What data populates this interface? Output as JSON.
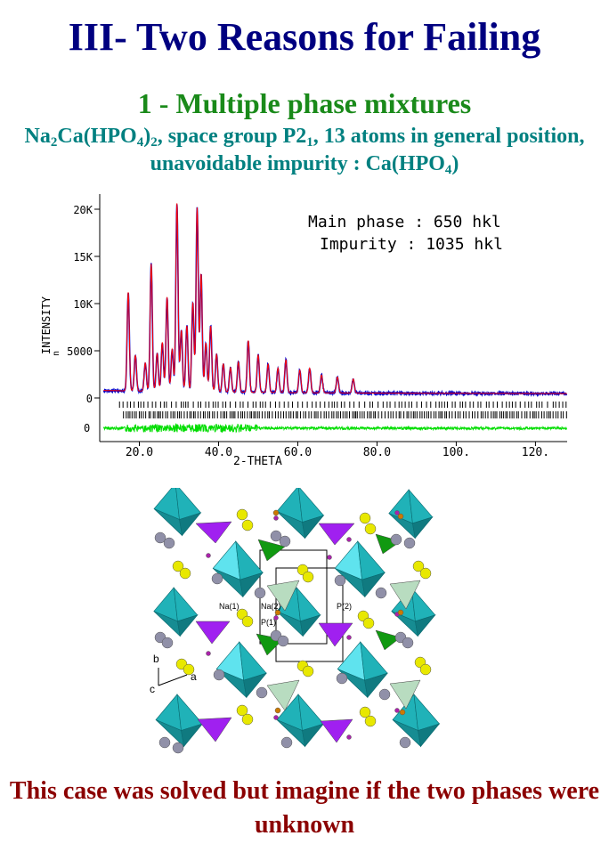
{
  "title": "III- Two Reasons for Failing",
  "subtitle": "1 - Multiple phase mixtures",
  "description": {
    "formula_a": "Na",
    "formula_a_sub": "2",
    "formula_b": "Ca(HPO",
    "formula_b_sub": "4",
    "formula_c": ")",
    "formula_c_sub": "2",
    "formula_d": ", space group P2",
    "formula_d_sub": "1",
    "formula_e": ", 13 atoms in general position, unavoidable impurity : Ca(HPO",
    "formula_e_sub": "4",
    "formula_f": ")"
  },
  "chart_data": {
    "type": "line",
    "xlabel": "2-THETA",
    "ylabel": "INTENSITY",
    "ylabel_minor": "n",
    "xlim": [
      10,
      128
    ],
    "ylim": [
      -3500,
      21500
    ],
    "x_ticks": [
      "20.0",
      "40.0",
      "60.0",
      "80.0",
      "100.",
      "120."
    ],
    "x_tick_values": [
      20,
      40,
      60,
      80,
      100,
      120
    ],
    "y_ticks": [
      "20K",
      "15K",
      "10K",
      "5000",
      "0"
    ],
    "y_tick_values": [
      20000,
      15000,
      10000,
      5000,
      0
    ],
    "difference_zero_label": "0",
    "annotations": [
      "Main phase : 650 hkl",
      "Impurity : 1035 hkl"
    ],
    "background_level": 800,
    "peaks": [
      {
        "x": 17.2,
        "y": 10500
      },
      {
        "x": 19.0,
        "y": 3800
      },
      {
        "x": 21.5,
        "y": 3000
      },
      {
        "x": 23.0,
        "y": 13500
      },
      {
        "x": 24.5,
        "y": 4000
      },
      {
        "x": 25.8,
        "y": 5200
      },
      {
        "x": 27.0,
        "y": 10000
      },
      {
        "x": 28.3,
        "y": 4500
      },
      {
        "x": 29.5,
        "y": 20000
      },
      {
        "x": 30.6,
        "y": 6500
      },
      {
        "x": 32.0,
        "y": 7000
      },
      {
        "x": 33.5,
        "y": 9500
      },
      {
        "x": 34.6,
        "y": 19500
      },
      {
        "x": 35.6,
        "y": 12500
      },
      {
        "x": 36.8,
        "y": 5200
      },
      {
        "x": 38.0,
        "y": 7000
      },
      {
        "x": 39.5,
        "y": 4000
      },
      {
        "x": 41.2,
        "y": 3000
      },
      {
        "x": 43.0,
        "y": 2600
      },
      {
        "x": 45.0,
        "y": 3200
      },
      {
        "x": 47.5,
        "y": 5500
      },
      {
        "x": 50.0,
        "y": 4000
      },
      {
        "x": 52.5,
        "y": 3000
      },
      {
        "x": 55.0,
        "y": 2600
      },
      {
        "x": 57.0,
        "y": 3500
      },
      {
        "x": 60.5,
        "y": 2400
      },
      {
        "x": 63.0,
        "y": 2600
      },
      {
        "x": 66.0,
        "y": 1900
      },
      {
        "x": 70.0,
        "y": 1700
      },
      {
        "x": 74.0,
        "y": 1500
      }
    ],
    "series": [
      {
        "name": "",
        "color": "#0000cc"
      },
      {
        "name": "",
        "color": "#ff0000"
      },
      {
        "name": "",
        "color": "#00dd00"
      }
    ]
  },
  "structure_labels": {
    "na1": "Na(1)",
    "na2": "Na(2)",
    "p1": "P(1)",
    "p2": "P(2)",
    "axis_b": "b",
    "axis_c": "c",
    "axis_a": "a"
  },
  "colors": {
    "octahedron": "#20b2b8",
    "octahedron_light": "#5fe3ee",
    "tetra_purple": "#a020f0",
    "tetra_green": "#119911",
    "tetra_pale": "#b8dcc0",
    "atom_yellow": "#e8e800",
    "atom_grey": "#9090a8"
  },
  "footer": "This case was solved but imagine if the two phases were unknown"
}
